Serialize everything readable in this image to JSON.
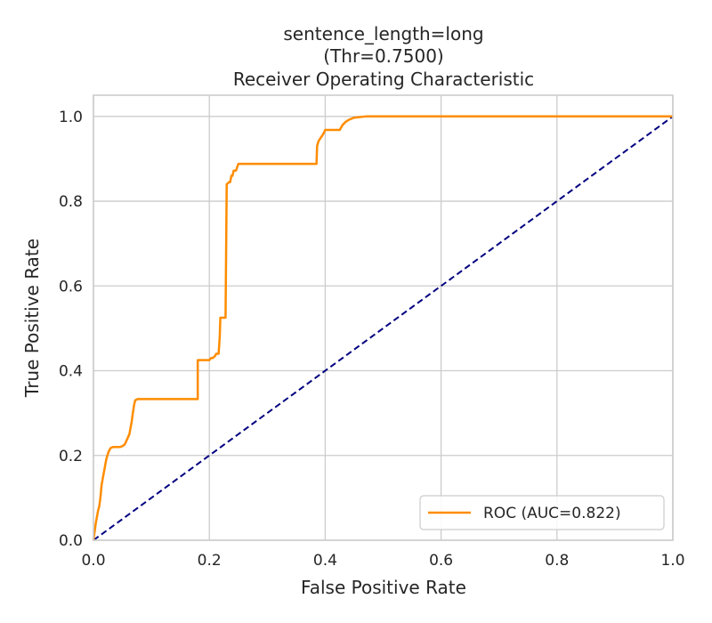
{
  "chart_data": {
    "type": "line",
    "title_lines": [
      "sentence_length=long",
      "(Thr=0.7500)",
      "Receiver Operating Characteristic"
    ],
    "xlabel": "False Positive Rate",
    "ylabel": "True Positive Rate",
    "xlim": [
      0.0,
      1.0
    ],
    "ylim": [
      0.0,
      1.05
    ],
    "xticks": [
      0.0,
      0.2,
      0.4,
      0.6,
      0.8,
      1.0
    ],
    "yticks": [
      0.0,
      0.2,
      0.4,
      0.6,
      0.8,
      1.0
    ],
    "xtick_labels": [
      "0.0",
      "0.2",
      "0.4",
      "0.6",
      "0.8",
      "1.0"
    ],
    "ytick_labels": [
      "0.0",
      "0.2",
      "0.4",
      "0.6",
      "0.8",
      "1.0"
    ],
    "grid": true,
    "legend_position": "bottom-right",
    "series": [
      {
        "name": "ROC (AUC=0.822)",
        "color": "#ff8c00",
        "style": "solid",
        "x": [
          0.0,
          0.002,
          0.004,
          0.006,
          0.008,
          0.01,
          0.012,
          0.014,
          0.016,
          0.018,
          0.02,
          0.022,
          0.024,
          0.026,
          0.028,
          0.03,
          0.034,
          0.038,
          0.042,
          0.046,
          0.05,
          0.054,
          0.056,
          0.058,
          0.062,
          0.064,
          0.066,
          0.068,
          0.07,
          0.072,
          0.076,
          0.09,
          0.12,
          0.15,
          0.18,
          0.18,
          0.19,
          0.2,
          0.203,
          0.206,
          0.21,
          0.212,
          0.215,
          0.216,
          0.218,
          0.219,
          0.22,
          0.222,
          0.224,
          0.226,
          0.228,
          0.23,
          0.232,
          0.234,
          0.236,
          0.238,
          0.24,
          0.242,
          0.246,
          0.25,
          0.27,
          0.3,
          0.33,
          0.36,
          0.385,
          0.386,
          0.388,
          0.39,
          0.395,
          0.398,
          0.4,
          0.41,
          0.42,
          0.425,
          0.43,
          0.436,
          0.442,
          0.45,
          0.47,
          0.5,
          0.6,
          0.8,
          1.0
        ],
        "y": [
          0.0,
          0.02,
          0.04,
          0.055,
          0.07,
          0.08,
          0.1,
          0.13,
          0.145,
          0.16,
          0.175,
          0.19,
          0.2,
          0.208,
          0.214,
          0.218,
          0.22,
          0.22,
          0.22,
          0.22,
          0.222,
          0.226,
          0.232,
          0.238,
          0.25,
          0.265,
          0.28,
          0.3,
          0.318,
          0.33,
          0.333,
          0.333,
          0.333,
          0.333,
          0.333,
          0.425,
          0.425,
          0.425,
          0.43,
          0.43,
          0.435,
          0.44,
          0.44,
          0.44,
          0.48,
          0.525,
          0.525,
          0.525,
          0.525,
          0.525,
          0.525,
          0.84,
          0.842,
          0.845,
          0.845,
          0.86,
          0.86,
          0.872,
          0.872,
          0.888,
          0.888,
          0.888,
          0.888,
          0.888,
          0.888,
          0.93,
          0.94,
          0.945,
          0.955,
          0.962,
          0.968,
          0.968,
          0.968,
          0.968,
          0.98,
          0.988,
          0.993,
          0.997,
          1.0,
          1.0,
          1.0,
          1.0,
          1.0
        ]
      },
      {
        "name": "",
        "color": "#000080",
        "style": "dashed",
        "x": [
          0.0,
          1.0
        ],
        "y": [
          0.0,
          1.0
        ]
      }
    ]
  }
}
